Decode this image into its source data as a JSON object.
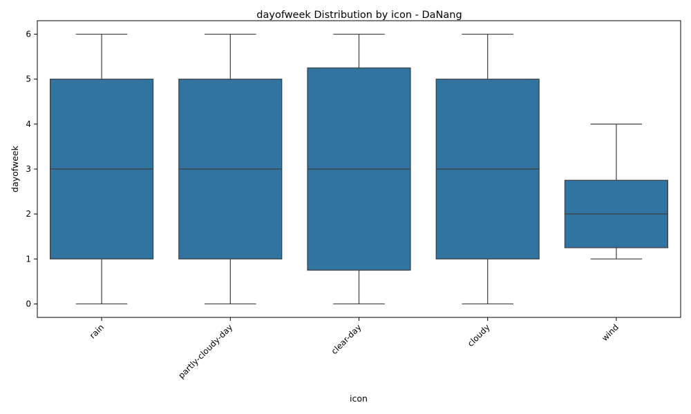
{
  "chart_data": {
    "type": "box",
    "title": "dayofweek Distribution by icon - DaNang",
    "xlabel": "icon",
    "ylabel": "dayofweek",
    "ylim": [
      -0.3,
      6.3
    ],
    "yticks": [
      0,
      1,
      2,
      3,
      4,
      5,
      6
    ],
    "categories": [
      "rain",
      "partly-cloudy-day",
      "clear-day",
      "cloudy",
      "wind"
    ],
    "boxes": [
      {
        "category": "rain",
        "whisker_low": 0,
        "q1": 1,
        "median": 3,
        "q3": 5,
        "whisker_high": 6
      },
      {
        "category": "partly-cloudy-day",
        "whisker_low": 0,
        "q1": 1,
        "median": 3,
        "q3": 5,
        "whisker_high": 6
      },
      {
        "category": "clear-day",
        "whisker_low": 0,
        "q1": 0.75,
        "median": 3,
        "q3": 5.25,
        "whisker_high": 6
      },
      {
        "category": "cloudy",
        "whisker_low": 0,
        "q1": 1,
        "median": 3,
        "q3": 5,
        "whisker_high": 6
      },
      {
        "category": "wind",
        "whisker_low": 1,
        "q1": 1.25,
        "median": 2,
        "q3": 2.75,
        "whisker_high": 4
      }
    ],
    "box_color": "#3274a1",
    "line_color": "#3d3d3d",
    "grid": false,
    "legend": "none"
  }
}
